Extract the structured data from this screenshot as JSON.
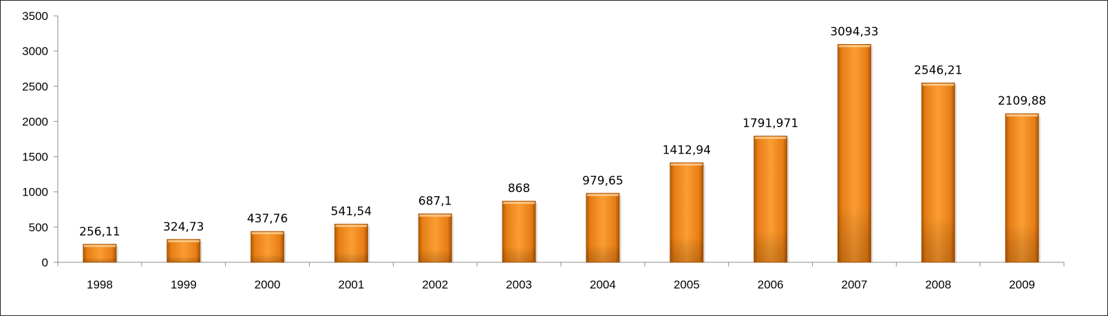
{
  "chart_data": {
    "type": "bar",
    "title": "",
    "xlabel": "",
    "ylabel": "",
    "categories": [
      "1998",
      "1999",
      "2000",
      "2001",
      "2002",
      "2003",
      "2004",
      "2005",
      "2006",
      "2007",
      "2008",
      "2009"
    ],
    "values": [
      256.11,
      324.73,
      437.76,
      541.54,
      687.1,
      868,
      979.65,
      1412.94,
      1791.971,
      3094.33,
      2546.21,
      2109.88
    ],
    "value_labels": [
      "256,11",
      "324,73",
      "437,76",
      "541,54",
      "687,1",
      "868",
      "979,65",
      "1412,94",
      "1791,971",
      "3094,33",
      "2546,21",
      "2109,88"
    ],
    "ylim": [
      0,
      3500
    ],
    "yticks": [
      0,
      500,
      1000,
      1500,
      2000,
      2500,
      3000,
      3500
    ],
    "grid": false,
    "legend": "none",
    "bar_color": "#f7931e"
  }
}
